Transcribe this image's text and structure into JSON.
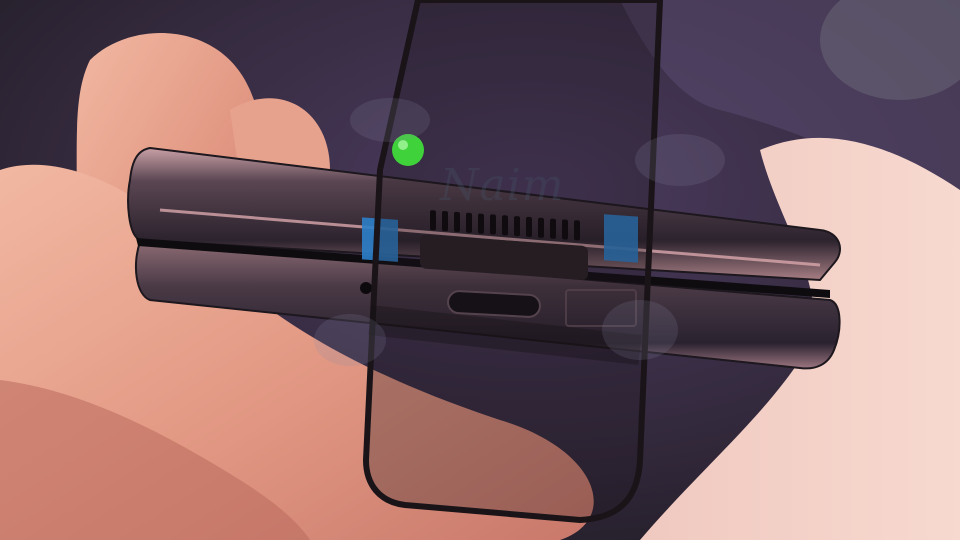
{
  "photo": {
    "subject": "foldable-phone-bottom-edge",
    "colors": {
      "background": "#2a2630",
      "upholstery": "#4a3a5e",
      "skin": "#e9a58d",
      "skin_shadow": "#c97866",
      "phone_body": "#3a3040",
      "phone_edge_highlight": "#b98f92",
      "screen_protector_outline": "#1a1418",
      "led": "#3fd23a",
      "blue_tape": "#2c7fc9",
      "watermark": "#5a6478"
    }
  },
  "watermark": {
    "text": "Naim"
  },
  "icons": {
    "led": "green-led-icon",
    "usb_port": "usb-c-port-icon",
    "speaker": "speaker-grille-icon",
    "mic": "microphone-hole-icon"
  }
}
